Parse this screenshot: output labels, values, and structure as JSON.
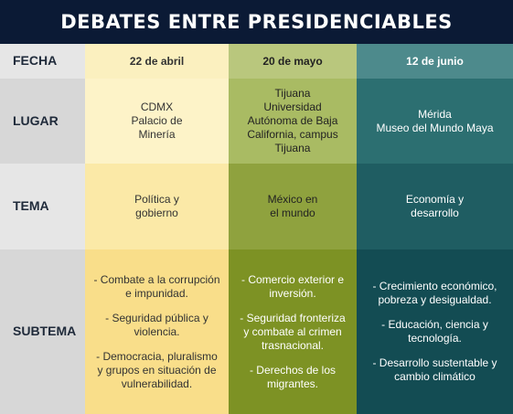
{
  "title": "DEBATES ENTRE PRESIDENCIABLES",
  "row_labels": {
    "fecha": "FECHA",
    "lugar": "LUGAR",
    "tema": "TEMA",
    "subtema": "SUBTEMA"
  },
  "debates": [
    {
      "fecha": "22 de abril",
      "lugar": "CDMX\nPalacio de\nMinería",
      "tema": "Política y\ngobierno",
      "subtemas": [
        "- Combate a la corrupción\ne impunidad.",
        "- Seguridad pública y\nviolencia.",
        "- Democracia, pluralismo\ny grupos en situación de\nvulnerabilidad."
      ]
    },
    {
      "fecha": "20 de mayo",
      "lugar": "Tijuana\nUniversidad\nAutónoma de Baja\nCalifornia, campus\nTijuana",
      "tema": "México en\nel mundo",
      "subtemas": [
        "- Comercio exterior e\ninversión.",
        "- Seguridad fronteriza\ny combate al crimen\ntrasnacional.",
        "- Derechos de los\nmigrantes."
      ]
    },
    {
      "fecha": "12 de junio",
      "lugar": "Mérida\nMuseo del Mundo Maya",
      "tema": "Economía y\ndesarrollo",
      "subtemas": [
        "- Crecimiento económico,\npobreza y desigualdad.",
        "- Educación, ciencia y\ntecnología.",
        "- Desarrollo sustentable y\ncambio climático"
      ]
    }
  ],
  "colors": {
    "title_bg": "#0b1a35",
    "column_1": "#fbe9a7",
    "column_2": "#8fa23e",
    "column_3": "#1f5d62",
    "row_header": "#e6e6e6"
  }
}
